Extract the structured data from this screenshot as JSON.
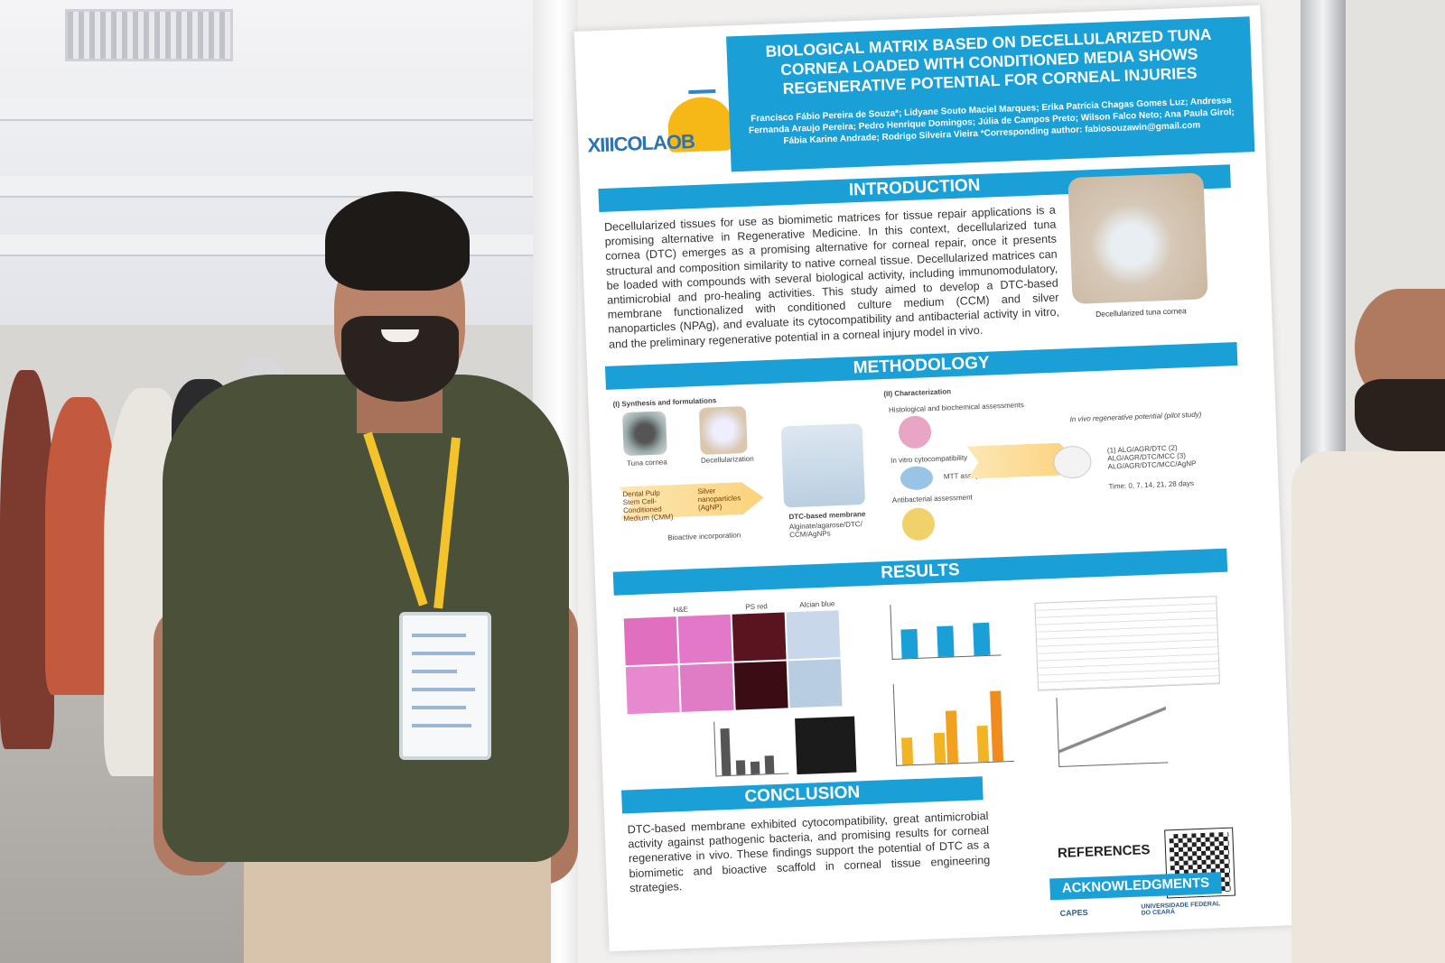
{
  "poster": {
    "logo": "XIIICOLAOB",
    "title": "BIOLOGICAL MATRIX BASED ON DECELLULARIZED TUNA CORNEA LOADED WITH CONDITIONED MEDIA SHOWS REGENERATIVE POTENTIAL FOR CORNEAL INJURIES",
    "authors": "Francisco Fábio Pereira de Souza*; Lidyane Souto Maciel Marques; Erika Patrícia Chagas Gomes Luz; Andressa Fernanda Araujo Pereira; Pedro Henrique Domingos; Júlia de Campos Preto; Wilson Falco Neto; Ana Paula Girol; Fábia Karine Andrade; Rodrigo Silveira Vieira *Corresponding author: fabiosouzawin@gmail.com",
    "introduction": {
      "heading": "INTRODUCTION",
      "text": "Decellularized tissues for use as biomimetic matrices for tissue repair applications is a promising alternative in Regenerative Medicine. In this context, decellularized tuna cornea (DTC) emerges as a promising alternative for corneal repair, once it presents structural and composition similarity to native corneal tissue. Decellularized matrices can be loaded with compounds with several biological activity, including immunomodulatory, antimicrobial and pro-healing activities. This study aimed to develop a DTC-based membrane functionalized with conditioned culture medium (CCM) and silver nanoparticles (NPAg), and evaluate its cytocompatibility and antibacterial activity in vitro, and the preliminary regenerative potential in a corneal injury model in vivo.",
      "photo_caption": "Decellularized tuna cornea"
    },
    "methodology": {
      "heading": "METHODOLOGY",
      "synthesis": "(I) Synthesis and formulations",
      "characterization": "(II) Characterization",
      "tuna_cornea": "Tuna cornea",
      "decellularization": "Decellularization",
      "membrane": "DTC-based membrane",
      "membrane_sub": "Alginate/agarose/DTC/ CCM/AgNPs",
      "pulp": "Dental Pulp Stem Cell-Conditioned Medium (CMM)",
      "silver": "Silver nanoparticles (AgNP)",
      "bioactive": "Bioactive incorporation",
      "histo": "Histological and biochemical assessments",
      "invitro": "In vitro cytocompatibility",
      "mtt": "MTT assay",
      "antibacterial": "Antibacterial assessment",
      "invivo": "In vivo regenerative potential (pilot study)",
      "groups": "(1) ALG/AGR/DTC (2) ALG/AGR/DTC/MCC (3) ALG/AGR/DTC/MCC/AgNP",
      "time": "Time: 0, 7, 14, 21, 28 days"
    },
    "results": {
      "heading": "RESULTS",
      "he": "H&E",
      "ps": "PS red",
      "alcian": "Alcian blue"
    },
    "conclusion": {
      "heading": "CONCLUSION",
      "text": "DTC-based membrane exhibited cytocompatibility, great antimicrobial activity against pathogenic bacteria, and promising results for corneal regenerative in vivo. These findings support the potential of DTC as a biomimetic and bioactive scaffold in corneal tissue engineering strategies."
    },
    "references": "REFERENCES",
    "acknowledgments": "ACKNOWLEDGMENTS",
    "sponsors": [
      "CAPES",
      "UNIVERSIDADE FEDERAL DO CEARÁ"
    ]
  },
  "colors": {
    "accent": "#1aa0d6",
    "lanyard": "#f2c32b",
    "shirt": "#4a5138"
  }
}
